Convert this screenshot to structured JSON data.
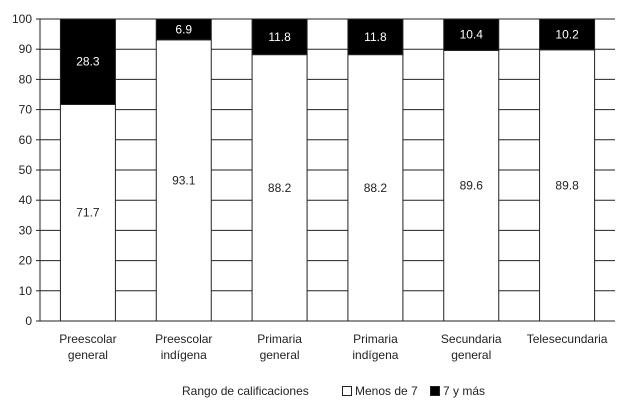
{
  "chart_data": {
    "type": "bar",
    "stacked": true,
    "categories": [
      [
        "Preescolar",
        "general"
      ],
      [
        "Preescolar",
        "indígena"
      ],
      [
        "Primaria",
        "general"
      ],
      [
        "Primaria",
        "indígena"
      ],
      [
        "Secundaria",
        "general"
      ],
      [
        "Telesecundaria"
      ]
    ],
    "series": [
      {
        "name": "Menos de 7",
        "color": "#ffffff",
        "values": [
          71.7,
          93.1,
          88.2,
          88.2,
          89.6,
          89.8
        ]
      },
      {
        "name": "7 y más",
        "color": "#000000",
        "values": [
          28.3,
          6.9,
          11.8,
          11.8,
          10.4,
          10.2
        ]
      }
    ],
    "data_labels": {
      "Menos de 7": [
        "71.7",
        "93.1",
        "88.2",
        "88.2",
        "89.6",
        "89.8"
      ],
      "7 y más": [
        "28.3",
        "6.9",
        "11.8",
        "11.8",
        "10.4",
        "10.2"
      ]
    },
    "yticks": [
      "0",
      "10",
      "20",
      "30",
      "40",
      "50",
      "60",
      "70",
      "80",
      "90",
      "100"
    ],
    "ylim": [
      0,
      100
    ],
    "grid": true,
    "legend": {
      "title": "Rango de calificaciones",
      "placement": "bottom"
    }
  }
}
